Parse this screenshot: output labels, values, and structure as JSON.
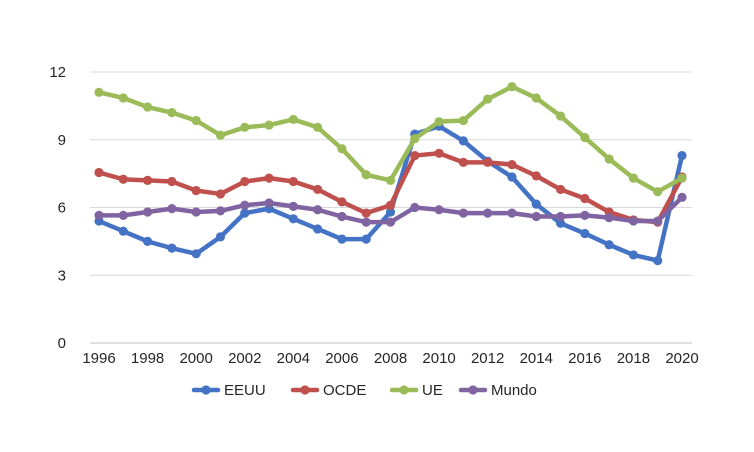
{
  "chart_data": {
    "type": "line",
    "title": "",
    "xlabel": "",
    "ylabel": "",
    "x": [
      1996,
      1997,
      1998,
      1999,
      2000,
      2001,
      2002,
      2003,
      2004,
      2005,
      2006,
      2007,
      2008,
      2009,
      2010,
      2011,
      2012,
      2013,
      2014,
      2015,
      2016,
      2017,
      2018,
      2019,
      2020
    ],
    "xlim": [
      1996,
      2020
    ],
    "ylim": [
      0,
      12
    ],
    "yticks": [
      0,
      3,
      6,
      9,
      12
    ],
    "xticks": [
      1996,
      1998,
      2000,
      2002,
      2004,
      2006,
      2008,
      2010,
      2012,
      2014,
      2016,
      2018,
      2020
    ],
    "grid": "horizontal",
    "legend": "bottom",
    "series": [
      {
        "name": "EEUU",
        "color": "#4472C4",
        "values": [
          5.4,
          4.95,
          4.5,
          4.2,
          3.95,
          4.7,
          5.75,
          5.95,
          5.5,
          5.05,
          4.6,
          4.6,
          5.8,
          9.25,
          9.6,
          8.95,
          8.05,
          7.35,
          6.15,
          5.3,
          4.85,
          4.35,
          3.9,
          3.65,
          8.3
        ]
      },
      {
        "name": "OCDE",
        "color": "#C0504D",
        "values": [
          7.55,
          7.25,
          7.2,
          7.15,
          6.75,
          6.6,
          7.15,
          7.3,
          7.15,
          6.8,
          6.25,
          5.75,
          6.1,
          8.3,
          8.4,
          8.0,
          8.0,
          7.9,
          7.4,
          6.8,
          6.4,
          5.8,
          5.45,
          5.35,
          7.35
        ]
      },
      {
        "name": "UE",
        "color": "#9BBB59",
        "values": [
          11.1,
          10.85,
          10.45,
          10.2,
          9.85,
          9.2,
          9.55,
          9.65,
          9.9,
          9.55,
          8.6,
          7.45,
          7.2,
          9.05,
          9.8,
          9.85,
          10.8,
          11.35,
          10.85,
          10.05,
          9.1,
          8.15,
          7.3,
          6.7,
          7.3
        ]
      },
      {
        "name": "Mundo",
        "color": "#8064A2",
        "values": [
          5.65,
          5.65,
          5.8,
          5.95,
          5.8,
          5.85,
          6.1,
          6.2,
          6.05,
          5.9,
          5.6,
          5.35,
          5.35,
          6.0,
          5.9,
          5.75,
          5.75,
          5.75,
          5.6,
          5.6,
          5.65,
          5.55,
          5.4,
          5.4,
          6.45
        ]
      }
    ]
  }
}
